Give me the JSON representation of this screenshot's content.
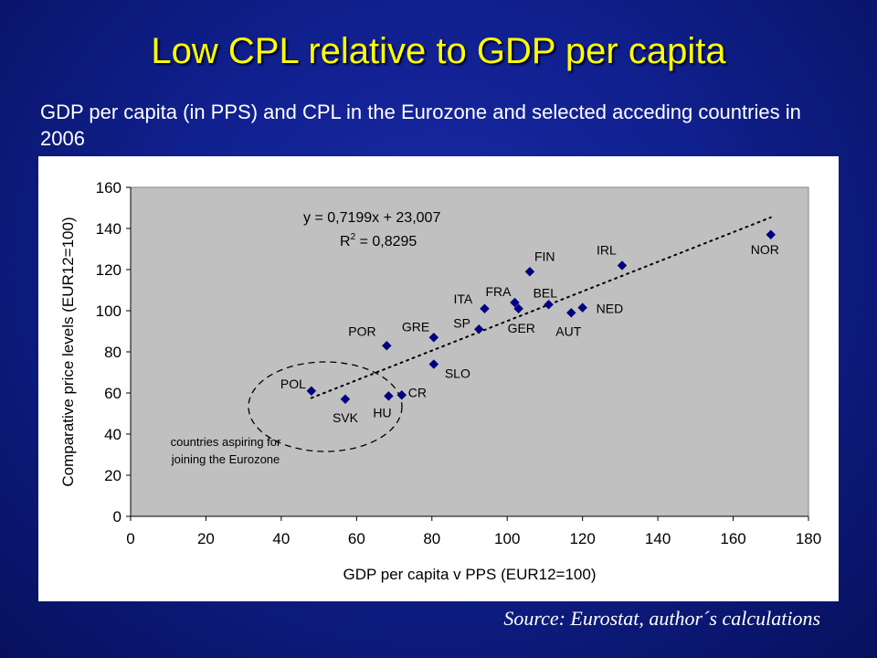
{
  "slide": {
    "title": "Low CPL relative to GDP per capita",
    "subtitle": "GDP per capita (in PPS) and CPL in the Eurozone and selected acceding countries in 2006",
    "source": "Source: Eurostat, author´s calculations"
  },
  "colors": {
    "background": "#10208e",
    "title": "#ffff00",
    "plot_area": "#c0c0c0",
    "marker": "#000080"
  },
  "chart_data": {
    "type": "scatter",
    "xlabel": "GDP per capita v PPS (EUR12=100)",
    "ylabel": "Comparative price levels (EUR12=100)",
    "xlim": [
      0,
      180
    ],
    "ylim": [
      0,
      160
    ],
    "xticks": [
      0,
      20,
      40,
      60,
      80,
      100,
      120,
      140,
      160,
      180
    ],
    "yticks": [
      0,
      20,
      40,
      60,
      80,
      100,
      120,
      140,
      160
    ],
    "grid": false,
    "points": [
      {
        "label": "POL",
        "x": 48,
        "y": 61
      },
      {
        "label": "SVK",
        "x": 57,
        "y": 57
      },
      {
        "label": "HU",
        "x": 68.5,
        "y": 58.5
      },
      {
        "label": "CR",
        "x": 72,
        "y": 59
      },
      {
        "label": "SLO",
        "x": 80.5,
        "y": 74
      },
      {
        "label": "POR",
        "x": 68,
        "y": 83
      },
      {
        "label": "GRE",
        "x": 80.5,
        "y": 87
      },
      {
        "label": "SP",
        "x": 92.5,
        "y": 91
      },
      {
        "label": "ITA",
        "x": 94,
        "y": 101
      },
      {
        "label": "FRA",
        "x": 102,
        "y": 104
      },
      {
        "label": "GER",
        "x": 103,
        "y": 101
      },
      {
        "label": "BEL",
        "x": 111,
        "y": 103
      },
      {
        "label": "FIN",
        "x": 106,
        "y": 119
      },
      {
        "label": "AUT",
        "x": 117,
        "y": 99
      },
      {
        "label": "NED",
        "x": 120,
        "y": 101.5
      },
      {
        "label": "IRL",
        "x": 130.5,
        "y": 122
      },
      {
        "label": "NOR",
        "x": 170,
        "y": 137
      }
    ],
    "trendline": {
      "style": "dotted",
      "x_range": [
        48,
        170
      ],
      "slope": 0.7199,
      "intercept": 23.007,
      "equation": "y = 0,7199x + 23,007",
      "r2_prefix": "R",
      "r2_sup": "2",
      "r2_value": " = 0,8295"
    },
    "annotation": {
      "line1": "countries aspiring for",
      "line2": "joining the Eurozone"
    }
  }
}
